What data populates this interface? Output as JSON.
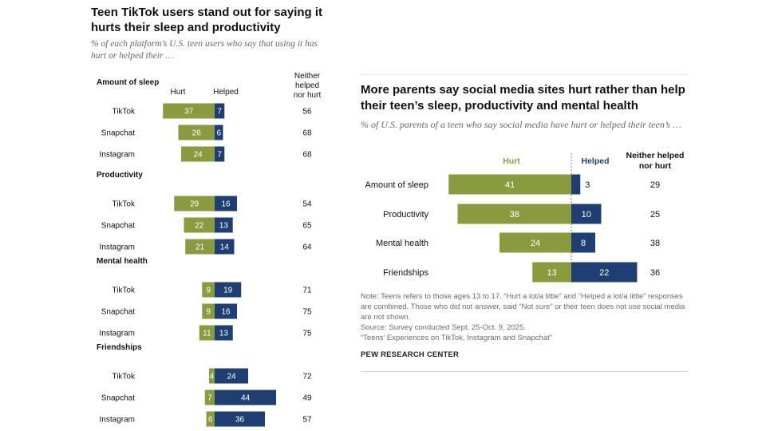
{
  "colors": {
    "hurt": "#8a9a3f",
    "helped": "#1f3f73",
    "text": "#111111",
    "muted": "#666666"
  },
  "left": {
    "title": "Teen TikTok users stand out for saying it hurts their sleep and productivity",
    "subtitle": "% of each platform’s U.S. teen users who say that using it has hurt or helped their …",
    "col_hurt": "Hurt",
    "col_helped": "Helped",
    "col_neither": [
      "Neither",
      "helped",
      "nor hurt"
    ]
  },
  "right": {
    "title": "More parents say social media sites hurt rather than help their teen’s sleep, productivity and mental health",
    "subtitle": "% of U.S. parents of a teen who say social media have hurt or helped their teen’s …",
    "col_hurt": "Hurt",
    "col_helped": "Helped",
    "col_neither": [
      "Neither helped",
      "nor hurt"
    ],
    "notes": [
      "Note: Teens refers to those ages 13 to 17. “Hurt a lot/a little” and “Helped a lot/a little” responses are combined. Those who did not answer, said “Not sure” or their teen does not use social media are not shown.",
      "Source: Survey conducted Sept. 25-Oct. 9, 2025.",
      "“Teens’ Experiences on TikTok, Instagram and Snapchat”"
    ],
    "brand": "PEW RESEARCH CENTER"
  },
  "chart_data": [
    {
      "type": "bar",
      "title": "Teen TikTok users stand out for saying it hurts their sleep and productivity",
      "subtitle": "% of each platform’s U.S. teen users who say that using it has hurt or helped their …",
      "legend": [
        "Hurt",
        "Helped",
        "Neither helped nor hurt"
      ],
      "groups": [
        {
          "name": "Amount of sleep",
          "rows": [
            {
              "label": "TikTok",
              "hurt": 37,
              "helped": 7,
              "neither": 56
            },
            {
              "label": "Snapchat",
              "hurt": 26,
              "helped": 6,
              "neither": 68
            },
            {
              "label": "Instagram",
              "hurt": 24,
              "helped": 7,
              "neither": 68
            }
          ]
        },
        {
          "name": "Productivity",
          "rows": [
            {
              "label": "TikTok",
              "hurt": 29,
              "helped": 16,
              "neither": 54
            },
            {
              "label": "Snapchat",
              "hurt": 22,
              "helped": 13,
              "neither": 65
            },
            {
              "label": "Instagram",
              "hurt": 21,
              "helped": 14,
              "neither": 64
            }
          ]
        },
        {
          "name": "Mental health",
          "rows": [
            {
              "label": "TikTok",
              "hurt": 9,
              "helped": 19,
              "neither": 71
            },
            {
              "label": "Snapchat",
              "hurt": 9,
              "helped": 16,
              "neither": 75
            },
            {
              "label": "Instagram",
              "hurt": 11,
              "helped": 13,
              "neither": 75
            }
          ]
        },
        {
          "name": "Friendships",
          "rows": [
            {
              "label": "TikTok",
              "hurt": 4,
              "helped": 24,
              "neither": 72
            },
            {
              "label": "Snapchat",
              "hurt": 7,
              "helped": 44,
              "neither": 49
            },
            {
              "label": "Instagram",
              "hurt": 6,
              "helped": 36,
              "neither": 57
            }
          ]
        }
      ]
    },
    {
      "type": "bar",
      "title": "More parents say social media sites hurt rather than help their teen’s sleep, productivity and mental health",
      "subtitle": "% of U.S. parents of a teen who say social media have hurt or helped their teen’s …",
      "legend": [
        "Hurt",
        "Helped",
        "Neither helped nor hurt"
      ],
      "rows": [
        {
          "label": "Amount of sleep",
          "hurt": 41,
          "helped": 3,
          "neither": 29
        },
        {
          "label": "Productivity",
          "hurt": 38,
          "helped": 10,
          "neither": 25
        },
        {
          "label": "Mental health",
          "hurt": 24,
          "helped": 8,
          "neither": 38
        },
        {
          "label": "Friendships",
          "hurt": 13,
          "helped": 22,
          "neither": 36
        }
      ]
    }
  ]
}
